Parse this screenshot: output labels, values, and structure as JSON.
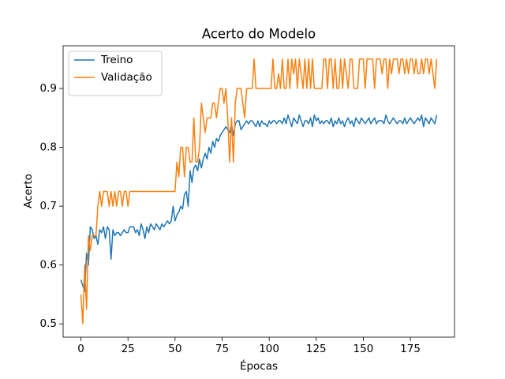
{
  "chart_data": {
    "type": "line",
    "title": "Acerto do Modelo",
    "xlabel": "Épocas",
    "ylabel": "Acerto",
    "x": [
      0,
      1,
      2,
      3,
      4,
      5,
      6,
      7,
      8,
      9,
      10,
      11,
      12,
      13,
      14,
      15,
      16,
      17,
      18,
      19,
      20,
      21,
      22,
      23,
      24,
      25,
      26,
      27,
      28,
      29,
      30,
      31,
      32,
      33,
      34,
      35,
      36,
      37,
      38,
      39,
      40,
      41,
      42,
      43,
      44,
      45,
      46,
      47,
      48,
      49,
      50,
      51,
      52,
      53,
      54,
      55,
      56,
      57,
      58,
      59,
      60,
      61,
      62,
      63,
      64,
      65,
      66,
      67,
      68,
      69,
      70,
      71,
      72,
      73,
      74,
      75,
      76,
      77,
      78,
      79,
      80,
      81,
      82,
      83,
      84,
      85,
      86,
      87,
      88,
      89,
      90,
      91,
      92,
      93,
      94,
      95,
      96,
      97,
      98,
      99,
      100,
      101,
      102,
      103,
      104,
      105,
      106,
      107,
      108,
      109,
      110,
      111,
      112,
      113,
      114,
      115,
      116,
      117,
      118,
      119,
      120,
      121,
      122,
      123,
      124,
      125,
      126,
      127,
      128,
      129,
      130,
      131,
      132,
      133,
      134,
      135,
      136,
      137,
      138,
      139,
      140,
      141,
      142,
      143,
      144,
      145,
      146,
      147,
      148,
      149,
      150,
      151,
      152,
      153,
      154,
      155,
      156,
      157,
      158,
      159,
      160,
      161,
      162,
      163,
      164,
      165,
      166,
      167,
      168,
      169,
      170,
      171,
      172,
      173,
      174,
      175,
      176,
      177,
      178,
      179,
      180,
      181,
      182,
      183,
      184,
      185,
      186,
      187,
      188,
      189
    ],
    "series": [
      {
        "name": "Treino",
        "color": "#1f77b4",
        "values": [
          0.575,
          0.565,
          0.555,
          0.62,
          0.6,
          0.665,
          0.66,
          0.645,
          0.65,
          0.635,
          0.66,
          0.655,
          0.665,
          0.645,
          0.665,
          0.66,
          0.61,
          0.66,
          0.65,
          0.655,
          0.655,
          0.65,
          0.655,
          0.66,
          0.655,
          0.655,
          0.665,
          0.665,
          0.665,
          0.655,
          0.66,
          0.65,
          0.67,
          0.66,
          0.645,
          0.665,
          0.655,
          0.67,
          0.665,
          0.66,
          0.67,
          0.665,
          0.66,
          0.67,
          0.665,
          0.67,
          0.675,
          0.67,
          0.675,
          0.7,
          0.675,
          0.685,
          0.69,
          0.7,
          0.695,
          0.72,
          0.725,
          0.7,
          0.76,
          0.74,
          0.765,
          0.77,
          0.76,
          0.78,
          0.765,
          0.78,
          0.79,
          0.78,
          0.8,
          0.79,
          0.81,
          0.8,
          0.815,
          0.81,
          0.82,
          0.825,
          0.83,
          0.835,
          0.83,
          0.825,
          0.84,
          0.82,
          0.84,
          0.845,
          0.845,
          0.83,
          0.835,
          0.84,
          0.845,
          0.84,
          0.845,
          0.845,
          0.84,
          0.835,
          0.845,
          0.835,
          0.845,
          0.84,
          0.84,
          0.835,
          0.845,
          0.84,
          0.845,
          0.845,
          0.84,
          0.845,
          0.845,
          0.84,
          0.85,
          0.84,
          0.855,
          0.845,
          0.835,
          0.85,
          0.845,
          0.84,
          0.855,
          0.845,
          0.835,
          0.845,
          0.845,
          0.84,
          0.85,
          0.835,
          0.855,
          0.845,
          0.85,
          0.84,
          0.845,
          0.84,
          0.845,
          0.845,
          0.84,
          0.85,
          0.835,
          0.845,
          0.84,
          0.85,
          0.84,
          0.845,
          0.835,
          0.845,
          0.85,
          0.84,
          0.845,
          0.835,
          0.85,
          0.845,
          0.84,
          0.85,
          0.845,
          0.84,
          0.845,
          0.85,
          0.84,
          0.845,
          0.85,
          0.84,
          0.845,
          0.845,
          0.845,
          0.84,
          0.855,
          0.845,
          0.84,
          0.845,
          0.85,
          0.845,
          0.84,
          0.845,
          0.845,
          0.84,
          0.85,
          0.84,
          0.845,
          0.85,
          0.845,
          0.84,
          0.845,
          0.85,
          0.845,
          0.855,
          0.835,
          0.85,
          0.845,
          0.84,
          0.85,
          0.845,
          0.84,
          0.855
        ]
      },
      {
        "name": "Validação",
        "color": "#ff7f0e",
        "values": [
          0.55,
          0.5,
          0.6,
          0.525,
          0.65,
          0.625,
          0.65,
          0.65,
          0.65,
          0.7,
          0.725,
          0.7,
          0.725,
          0.725,
          0.725,
          0.7,
          0.725,
          0.7,
          0.725,
          0.7,
          0.725,
          0.725,
          0.7,
          0.725,
          0.725,
          0.7,
          0.725,
          0.725,
          0.725,
          0.725,
          0.725,
          0.725,
          0.725,
          0.725,
          0.725,
          0.725,
          0.725,
          0.725,
          0.725,
          0.725,
          0.725,
          0.725,
          0.725,
          0.725,
          0.725,
          0.725,
          0.725,
          0.725,
          0.725,
          0.725,
          0.725,
          0.775,
          0.75,
          0.8,
          0.8,
          0.75,
          0.8,
          0.8,
          0.775,
          0.775,
          0.85,
          0.775,
          0.775,
          0.8,
          0.875,
          0.85,
          0.825,
          0.85,
          0.85,
          0.85,
          0.875,
          0.875,
          0.85,
          0.875,
          0.9,
          0.9,
          0.875,
          0.9,
          0.85,
          0.775,
          0.85,
          0.775,
          0.875,
          0.9,
          0.9,
          0.9,
          0.875,
          0.85,
          0.9,
          0.9,
          0.9,
          0.9,
          0.95,
          0.9,
          0.9,
          0.9,
          0.9,
          0.9,
          0.9,
          0.9,
          0.9,
          0.9,
          0.95,
          0.9,
          0.9,
          0.925,
          0.9,
          0.95,
          0.9,
          0.9,
          0.95,
          0.9,
          0.95,
          0.925,
          0.95,
          0.9,
          0.95,
          0.925,
          0.9,
          0.95,
          0.9,
          0.95,
          0.9,
          0.95,
          0.9,
          0.9,
          0.9,
          0.9,
          0.9,
          0.95,
          0.95,
          0.9,
          0.95,
          0.95,
          0.9,
          0.95,
          0.9,
          0.9,
          0.95,
          0.9,
          0.95,
          0.925,
          0.9,
          0.95,
          0.95,
          0.9,
          0.9,
          0.9,
          0.95,
          0.95,
          0.95,
          0.9,
          0.95,
          0.95,
          0.95,
          0.95,
          0.9,
          0.95,
          0.95,
          0.95,
          0.925,
          0.95,
          0.95,
          0.9,
          0.95,
          0.925,
          0.95,
          0.95,
          0.95,
          0.925,
          0.95,
          0.95,
          0.925,
          0.95,
          0.925,
          0.95,
          0.95,
          0.925,
          0.95,
          0.925,
          0.925,
          0.95,
          0.925,
          0.95,
          0.95,
          0.925,
          0.95,
          0.925,
          0.9,
          0.95
        ]
      }
    ],
    "xlim": [
      -9.45,
      198.45
    ],
    "xticks": [
      0,
      25,
      50,
      75,
      100,
      125,
      150,
      175
    ],
    "ylim": [
      0.4775,
      0.9725
    ],
    "yticks": [
      0.5,
      0.6,
      0.7,
      0.8,
      0.9
    ],
    "legend": "upper left"
  }
}
